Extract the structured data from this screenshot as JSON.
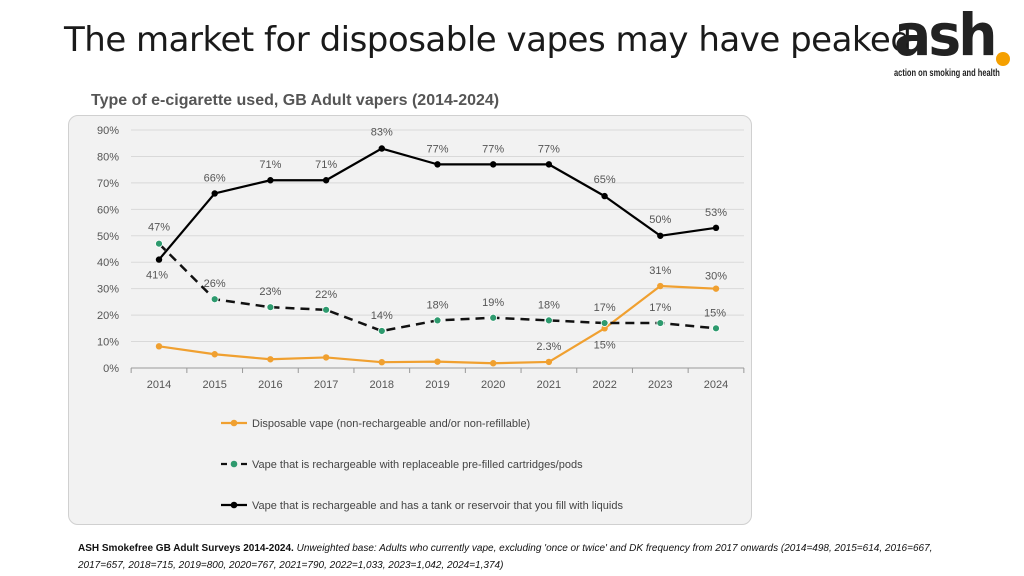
{
  "page": {
    "title": "The market for disposable vapes may have peaked",
    "logo": {
      "word": "ash",
      "tagline": "action on smoking and health",
      "dot_color": "#f5a000"
    }
  },
  "chart_data": {
    "type": "line",
    "title": "Type of e-cigarette used, GB Adult vapers (2014-2024)",
    "xlabel": "",
    "ylabel": "",
    "ylim": [
      0,
      90
    ],
    "yticks": [
      "0%",
      "10%",
      "20%",
      "30%",
      "40%",
      "50%",
      "60%",
      "70%",
      "80%",
      "90%"
    ],
    "categories": [
      "2014",
      "2015",
      "2016",
      "2017",
      "2018",
      "2019",
      "2020",
      "2021",
      "2022",
      "2023",
      "2024"
    ],
    "grid": true,
    "legend_position": "bottom",
    "series": [
      {
        "name": "Disposable vape (non-rechargeable and/or non-refillable)",
        "color": "#f0a030",
        "style": "solid",
        "values": [
          8.2,
          5.2,
          3.3,
          4.0,
          2.2,
          2.4,
          1.8,
          2.3,
          15,
          31,
          30
        ],
        "labels": [
          "",
          "",
          "",
          "",
          "",
          "",
          "",
          "2.3%",
          "15%",
          "31%",
          "30%"
        ]
      },
      {
        "name": "Vape that is rechargeable with replaceable pre-filled cartridges/pods",
        "color": "#111111",
        "marker_color": "#2e9a6e",
        "style": "dashed",
        "values": [
          47,
          26,
          23,
          22,
          14,
          18,
          19,
          18,
          17,
          17,
          15
        ],
        "labels": [
          "47%",
          "26%",
          "23%",
          "22%",
          "14%",
          "18%",
          "19%",
          "18%",
          "17%",
          "17%",
          "15%"
        ]
      },
      {
        "name": "Vape that is rechargeable and has a tank or reservoir that you fill with liquids",
        "color": "#000000",
        "style": "solid",
        "values": [
          41,
          66,
          71,
          71,
          83,
          77,
          77,
          77,
          65,
          50,
          53
        ],
        "labels": [
          "41%",
          "66%",
          "71%",
          "71%",
          "83%",
          "77%",
          "77%",
          "77%",
          "65%",
          "50%",
          "53%"
        ]
      }
    ]
  },
  "footnote": {
    "source": "ASH Smokefree GB Adult Surveys 2014-2024.",
    "details": "Unweighted base: Adults who currently vape, excluding 'once or twice' and DK frequency from 2017 onwards (2014=498, 2015=614, 2016=667, 2017=657, 2018=715, 2019=800, 2020=767, 2021=790, 2022=1,033, 2023=1,042, 2024=1,374)"
  }
}
